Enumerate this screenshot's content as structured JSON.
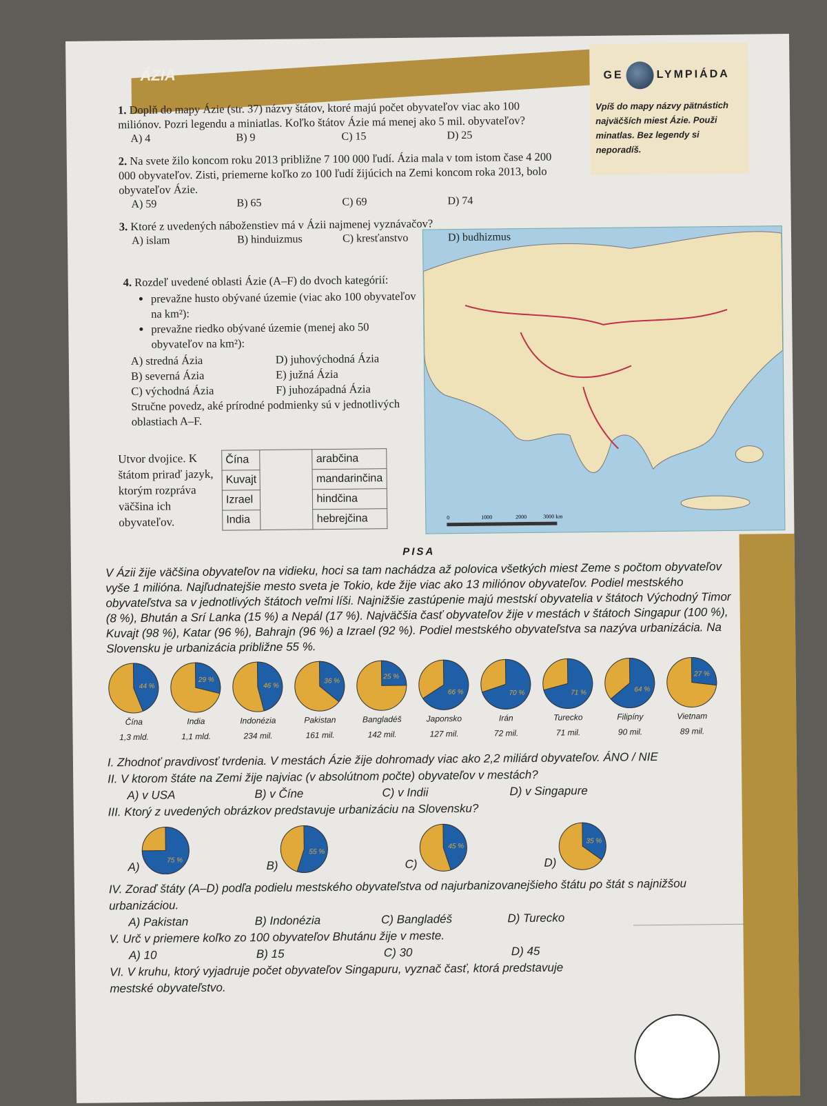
{
  "header": {
    "title": "ÁZIA"
  },
  "olympiada": {
    "logo_left": "GE",
    "logo_right": "LYMPIÁDA",
    "text": "Vpíš do mapy názvy pätnástich najväčších miest Ázie. Použi minatlas. Bez legendy si neporadíš."
  },
  "questions": [
    {
      "num": "1.",
      "text": "Doplň do mapy Ázie (str. 37) názvy štátov, ktoré majú počet obyvateľov viac ako 100 miliónov. Pozri legendu a miniatlas. Koľko štátov Ázie má menej ako 5 mil. obyvateľov?",
      "options": [
        "A) 4",
        "B) 9",
        "C) 15",
        "D) 25"
      ]
    },
    {
      "num": "2.",
      "text": "Na svete žilo koncom roku 2013 približne 7 100 000 ľudí. Ázia mala v tom istom čase 4 200 000 obyvateľov. Zisti, priemerne koľko zo 100 ľudí žijúcich na Zemi koncom roka 2013, bolo obyvateľov Ázie.",
      "options": [
        "A) 59",
        "B) 65",
        "C) 69",
        "D) 74"
      ]
    },
    {
      "num": "3.",
      "text": "Ktoré z uvedených náboženstiev má v Ázii najmenej vyznávačov?",
      "options": [
        "A) islam",
        "B) hinduizmus",
        "C) kresťanstvo",
        "D) budhizmus"
      ]
    }
  ],
  "q4": {
    "num": "4.",
    "text": "Rozdeľ uvedené oblasti Ázie (A–F) do dvoch kategórií:",
    "bullets": [
      "prevažne husto obývané územie (viac ako 100 obyvateľov na km²):",
      "prevažne riedko obývané územie (menej ako 50 obyvateľov na km²):"
    ],
    "options": [
      "A) stredná Ázia",
      "D) juhovýchodná Ázia",
      "B) severná Ázia",
      "E) južná Ázia",
      "C) východná Ázia",
      "F) juhozápadná Ázia"
    ],
    "tail": "Stručne povedz, aké prírodné podmienky sú v jednotlivých oblastiach A–F."
  },
  "pairs": {
    "text": "Utvor dvojice. K štátom priraď jazyk, ktorým rozpráva väčšina ich obyvateľov.",
    "states": [
      "Čína",
      "Kuvajt",
      "Izrael",
      "India"
    ],
    "languages": [
      "arabčina",
      "mandarinčina",
      "hindčina",
      "hebrejčina"
    ]
  },
  "map": {
    "scale": [
      "0",
      "1000",
      "2000",
      "3000 km"
    ]
  },
  "pisa": {
    "title": "PISA",
    "text": "V Ázii žije väčšina obyvateľov na vidieku, hoci sa tam nachádza až polovica všetkých miest Zeme s počtom obyvateľov vyše 1 milióna. Najľudnatejšie mesto sveta je Tokio, kde žije viac ako 13 miliónov obyvateľov. Podiel mestského obyvateľstva sa v jednotlivých štátoch veľmi líši. Najnižšie zastúpenie majú mestskí obyvatelia v štátoch Východný Timor (8 %), Bhután a Srí Lanka (15 %) a Nepál (17 %). Najväčšia časť obyvateľov žije v mestách v štátoch Singapur (100 %), Kuvajt (98 %), Katar (96 %), Bahrajn (96 %) a Izrael (92 %). Podiel mestského obyvateľstva sa nazýva urbanizácia. Na Slovensku je urbanizácia približne 55 %."
  },
  "chart_data": {
    "type": "pie",
    "colors": {
      "urban": "#1f5fa8",
      "rural": "#e0a93a"
    },
    "items": [
      {
        "country": "Čína",
        "population": "1,3 mld.",
        "urban": 44,
        "label": "44 %"
      },
      {
        "country": "India",
        "population": "1,1 mld.",
        "urban": 29,
        "label": "29 %"
      },
      {
        "country": "Indonézia",
        "population": "234 mil.",
        "urban": 46,
        "label": "46 %"
      },
      {
        "country": "Pakistan",
        "population": "161 mil.",
        "urban": 36,
        "label": "36 %"
      },
      {
        "country": "Bangladéš",
        "population": "142 mil.",
        "urban": 25,
        "label": "25 %"
      },
      {
        "country": "Japonsko",
        "population": "127 mil.",
        "urban": 66,
        "label": "66 %"
      },
      {
        "country": "Irán",
        "population": "72 mil.",
        "urban": 70,
        "label": "70 %"
      },
      {
        "country": "Turecko",
        "population": "71 mil.",
        "urban": 71,
        "label": "71 %"
      },
      {
        "country": "Filipíny",
        "population": "90 mil.",
        "urban": 64,
        "label": "64 %"
      },
      {
        "country": "Vietnam",
        "population": "89 mil.",
        "urban": 27,
        "label": "27 %"
      }
    ]
  },
  "tasks": {
    "I": "I. Zhodnoť pravdivosť tvrdenia. V mestách Ázie žije dohromady viac ako 2,2 miliárd obyvateľov. ÁNO / NIE",
    "II": {
      "text": "II. V ktorom štáte na Zemi žije najviac (v absolútnom počte) obyvateľov v mestách?",
      "options": [
        "A) v USA",
        "B) v Číne",
        "C) v Indii",
        "D) v Singapure"
      ]
    },
    "III": {
      "text": "III. Ktorý z uvedených obrázkov predstavuje urbanizáciu na Slovensku?",
      "pies": [
        {
          "letter": "A)",
          "urban": 75,
          "label": "75 %"
        },
        {
          "letter": "B)",
          "urban": 55,
          "label": "55 %"
        },
        {
          "letter": "C)",
          "urban": 45,
          "label": "45 %"
        },
        {
          "letter": "D)",
          "urban": 35,
          "label": "35 %"
        }
      ]
    },
    "IV": {
      "text": "IV. Zoraď štáty (A–D) podľa podielu mestského obyvateľstva od najurbanizovanejšieho štátu po štát s najnižšou urbanizáciou.",
      "options": [
        "A) Pakistan",
        "B) Indonézia",
        "C) Bangladéš",
        "D) Turecko"
      ]
    },
    "V": {
      "text": "V. Urč v priemere koľko zo 100 obyvateľov Bhutánu žije v meste.",
      "options": [
        "A) 10",
        "B) 15",
        "C) 30",
        "D) 45"
      ]
    },
    "VI": "VI. V kruhu, ktorý vyjadruje počet obyvateľov Singapuru, vyznač časť, ktorá predstavuje mestské obyvateľstvo."
  }
}
